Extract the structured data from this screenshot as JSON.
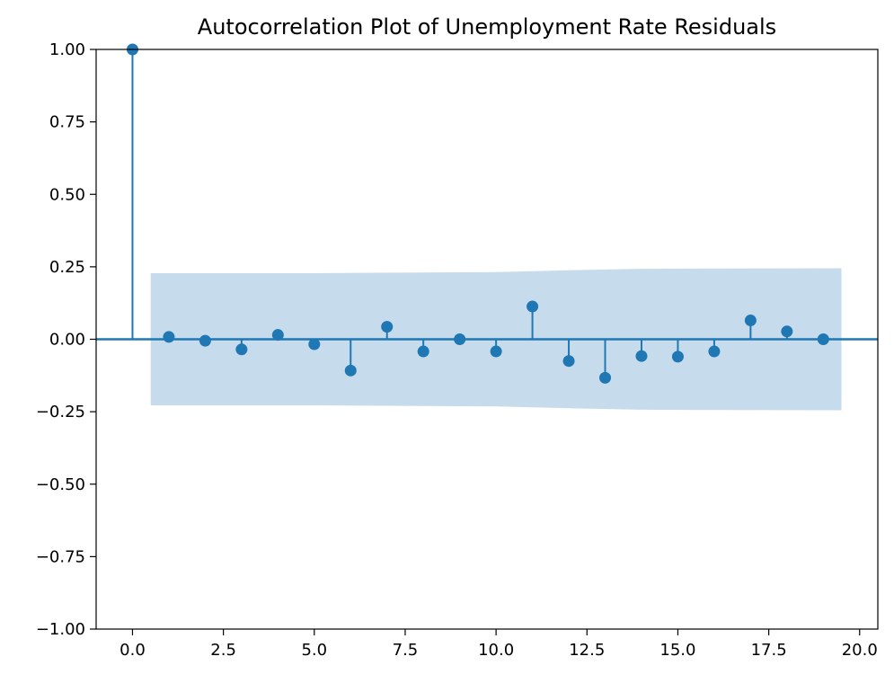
{
  "chart_data": {
    "type": "stem",
    "title": "Autocorrelation Plot of Unemployment Rate Residuals",
    "xlabel": "",
    "ylabel": "",
    "xlim": [
      -1.0,
      20.5
    ],
    "ylim": [
      -1.0,
      1.0
    ],
    "x_ticks": [
      0.0,
      2.5,
      5.0,
      7.5,
      10.0,
      12.5,
      15.0,
      17.5,
      20.0
    ],
    "x_tick_labels": [
      "0.0",
      "2.5",
      "5.0",
      "7.5",
      "10.0",
      "12.5",
      "15.0",
      "17.5",
      "20.0"
    ],
    "y_ticks": [
      -1.0,
      -0.75,
      -0.5,
      -0.25,
      0.0,
      0.25,
      0.5,
      0.75,
      1.0
    ],
    "y_tick_labels": [
      "−1.00",
      "−0.75",
      "−0.50",
      "−0.25",
      "0.00",
      "0.25",
      "0.50",
      "0.75",
      "1.00"
    ],
    "grid": false,
    "series_color": "#1f77b4",
    "band_color": "#c6dcec",
    "lags": [
      0,
      1,
      2,
      3,
      4,
      5,
      6,
      7,
      8,
      9,
      10,
      11,
      12,
      13,
      14,
      15,
      16,
      17,
      18,
      19
    ],
    "values": [
      1.0,
      0.008,
      -0.005,
      -0.035,
      0.015,
      -0.017,
      -0.108,
      0.043,
      -0.042,
      0.0,
      -0.042,
      0.113,
      -0.075,
      -0.133,
      -0.058,
      -0.06,
      -0.042,
      0.065,
      0.027,
      0.0
    ],
    "confidence_band": {
      "x": [
        0.5,
        5.0,
        10.0,
        12.0,
        14.0,
        16.0,
        19.5
      ],
      "upper": [
        0.228,
        0.228,
        0.232,
        0.238,
        0.243,
        0.244,
        0.245
      ],
      "lower": [
        -0.228,
        -0.228,
        -0.232,
        -0.238,
        -0.243,
        -0.244,
        -0.245
      ]
    }
  }
}
